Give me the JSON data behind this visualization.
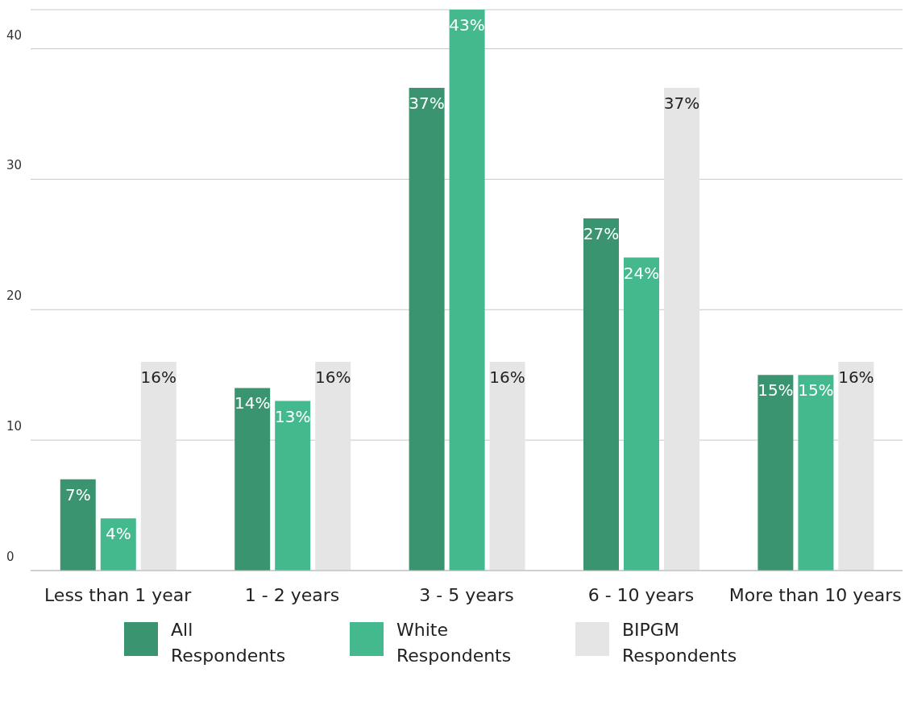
{
  "chart_data": {
    "type": "bar",
    "categories": [
      "Less than 1 year",
      "1 - 2 years",
      "3 - 5 years",
      "6 - 10 years",
      "More than 10 years"
    ],
    "series": [
      {
        "name": "All Respondents",
        "color": "#3a9470",
        "values": [
          7,
          14,
          37,
          27,
          15
        ],
        "value_labels": [
          "7%",
          "14%",
          "37%",
          "27%",
          "15%"
        ]
      },
      {
        "name": "White Respondents",
        "color": "#45b98e",
        "values": [
          4,
          13,
          43,
          24,
          15
        ],
        "value_labels": [
          "4%",
          "13%",
          "43%",
          "24%",
          "15%"
        ]
      },
      {
        "name": "BIPGM Respondents",
        "color": "#e5e5e5",
        "values": [
          16,
          16,
          16,
          37,
          16
        ],
        "value_labels": [
          "16%",
          "16%",
          "16%",
          "37%",
          "16%"
        ]
      }
    ],
    "ylim": [
      0,
      43
    ],
    "yticks": [
      0,
      10,
      20,
      30,
      40
    ],
    "grid": "y",
    "legend": "bottom"
  }
}
